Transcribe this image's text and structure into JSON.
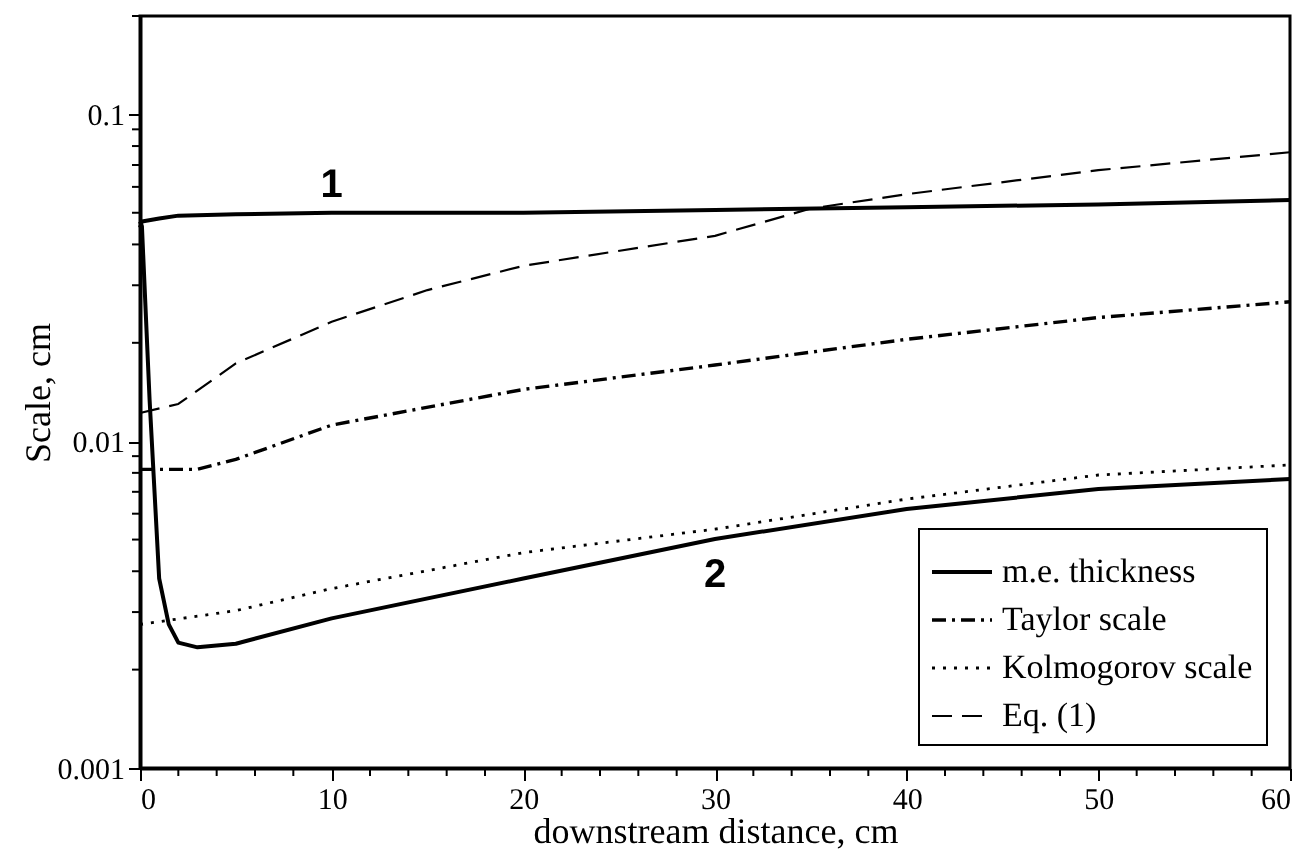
{
  "chart_data": {
    "type": "line",
    "xlabel": "downstream distance, cm",
    "ylabel": "Scale, cm",
    "log": "y",
    "grid": false,
    "legend": "bottom right",
    "marker": "none",
    "xlim": [
      0,
      60
    ],
    "ylim": [
      0.001,
      0.2
    ],
    "xticks": [
      0,
      {
        "value": 2,
        "label": null
      },
      {
        "value": 4,
        "label": null
      },
      {
        "value": 6,
        "label": null
      },
      {
        "value": 8,
        "label": null
      },
      10,
      {
        "value": 12,
        "label": null
      },
      {
        "value": 14,
        "label": null
      },
      {
        "value": 16,
        "label": null
      },
      {
        "value": 18,
        "label": null
      },
      20,
      {
        "value": 22,
        "label": null
      },
      {
        "value": 24,
        "label": null
      },
      {
        "value": 26,
        "label": null
      },
      {
        "value": 28,
        "label": null
      },
      30,
      {
        "value": 32,
        "label": null
      },
      {
        "value": 34,
        "label": null
      },
      {
        "value": 36,
        "label": null
      },
      {
        "value": 38,
        "label": null
      },
      40,
      {
        "value": 42,
        "label": null
      },
      {
        "value": 44,
        "label": null
      },
      {
        "value": 46,
        "label": null
      },
      {
        "value": 48,
        "label": null
      },
      50,
      {
        "value": 52,
        "label": null
      },
      {
        "value": 54,
        "label": null
      },
      {
        "value": 56,
        "label": null
      },
      {
        "value": 58,
        "label": null
      },
      60
    ],
    "yticks": [
      0.001,
      {
        "value": 0.002,
        "label": null
      },
      {
        "value": 0.003,
        "label": null
      },
      {
        "value": 0.004,
        "label": null
      },
      {
        "value": 0.005,
        "label": null
      },
      {
        "value": 0.006,
        "label": null
      },
      {
        "value": 0.007,
        "label": null
      },
      {
        "value": 0.008,
        "label": null
      },
      {
        "value": 0.009,
        "label": null
      },
      0.01,
      {
        "value": 0.02,
        "label": null
      },
      {
        "value": 0.03,
        "label": null
      },
      {
        "value": 0.04,
        "label": null
      },
      {
        "value": 0.05,
        "label": null
      },
      {
        "value": 0.06,
        "label": null
      },
      {
        "value": 0.07,
        "label": null
      },
      {
        "value": 0.08,
        "label": null
      },
      {
        "value": 0.09,
        "label": null
      },
      0.1,
      {
        "value": 0.2,
        "label": null
      }
    ],
    "series": [
      {
        "name": "m.e. thickness",
        "color": "#000000",
        "line_style": "solid",
        "x": [
          0,
          0.1,
          1,
          2,
          5,
          10,
          20,
          30,
          40,
          50,
          60
        ],
        "values": [
          0.045,
          0.047,
          0.048,
          0.049,
          0.0495,
          0.05,
          0.05,
          0.051,
          0.052,
          0.053,
          0.0547
        ]
      },
      {
        "color": "#000000",
        "line_style": "solid",
        "x": [
          0,
          0.1,
          0.5,
          1,
          1.5,
          2,
          3,
          5,
          10,
          20,
          30,
          40,
          50,
          60
        ],
        "values": [
          0.047,
          0.0455,
          0.0134,
          0.0038,
          0.00275,
          0.00242,
          0.00234,
          0.0024,
          0.00287,
          0.0038,
          0.00502,
          0.0062,
          0.00714,
          0.00766
        ]
      },
      {
        "name": "Taylor scale",
        "color": "#000000",
        "line_style": "dashdot",
        "x": [
          0,
          3,
          5,
          10,
          20,
          30,
          40,
          50,
          60
        ],
        "values": [
          0.0082,
          0.0082,
          0.0088,
          0.0112,
          0.0144,
          0.0171,
          0.0205,
          0.0239,
          0.0267
        ]
      },
      {
        "name": "Kolmogorov scale",
        "color": "#000000",
        "line_style": "dotted",
        "x": [
          0,
          5,
          10,
          20,
          30,
          40,
          50,
          60
        ],
        "values": [
          0.00275,
          0.00303,
          0.00354,
          0.00456,
          0.00538,
          0.00665,
          0.00788,
          0.00846
        ]
      },
      {
        "name": "Eq. (1)",
        "color": "#000000",
        "line_style": "dashed",
        "x": [
          0,
          2,
          5,
          10,
          15,
          20,
          30,
          35,
          40,
          50,
          60
        ],
        "values": [
          0.0122,
          0.013,
          0.0173,
          0.0232,
          0.029,
          0.0344,
          0.0425,
          0.0515,
          0.057,
          0.0675,
          0.0766
        ]
      }
    ],
    "annotations": [
      {
        "text": "1",
        "x": 10,
        "y": 0.05
      },
      {
        "text": "2",
        "x": 30,
        "y": 0.00502
      }
    ]
  }
}
